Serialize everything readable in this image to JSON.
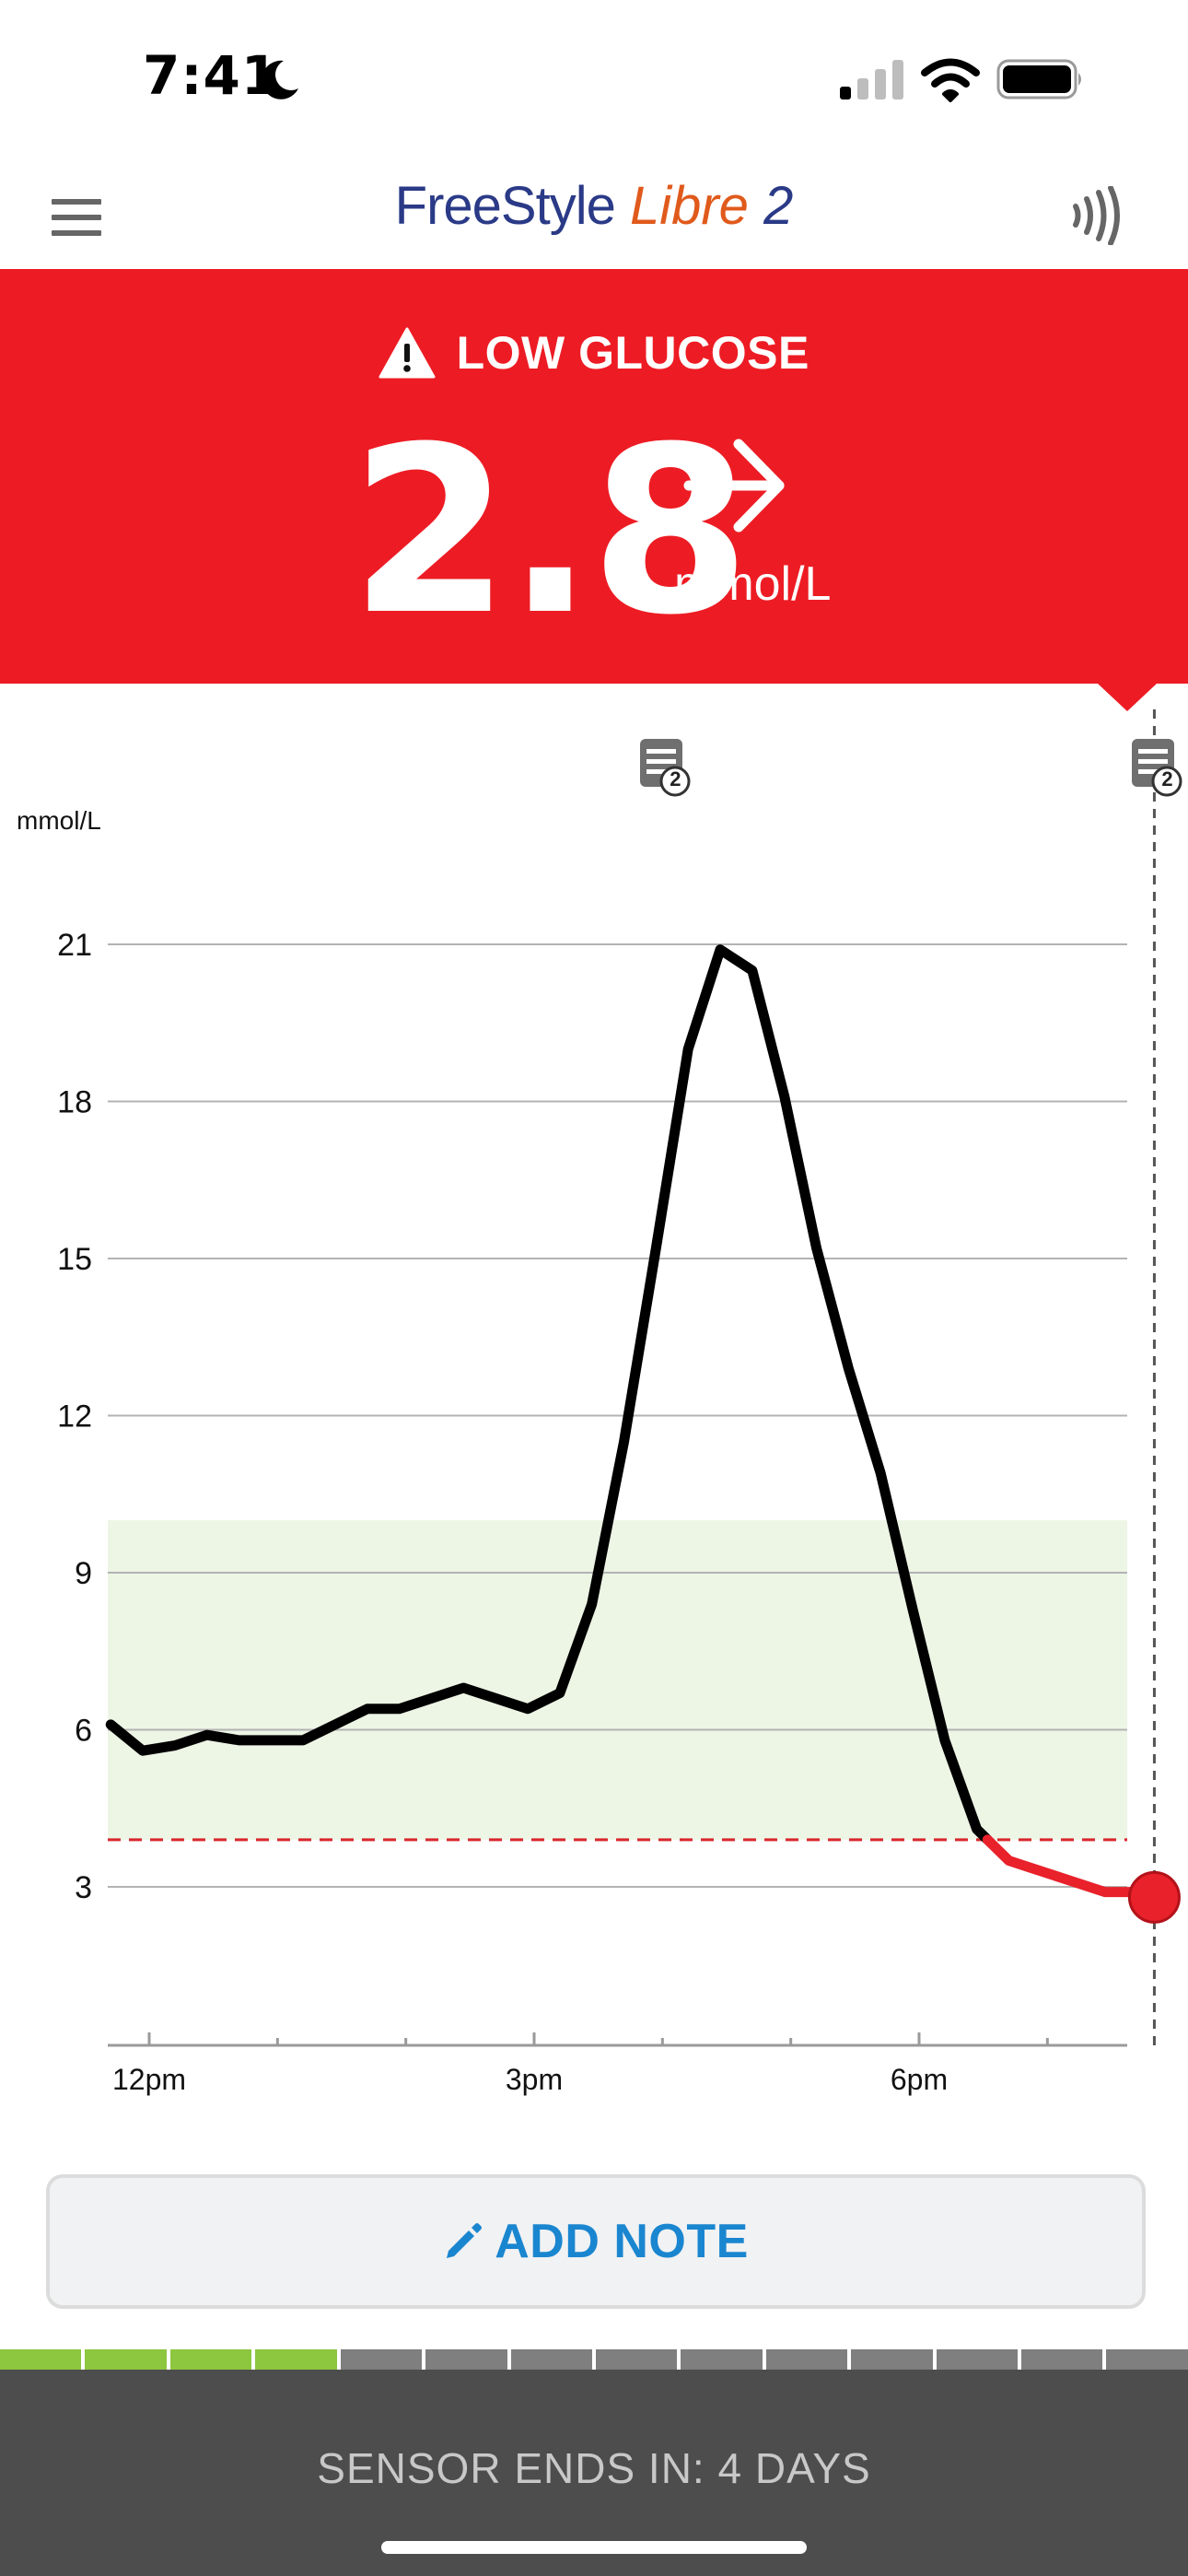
{
  "status_bar": {
    "time": "7:41"
  },
  "header": {
    "brand": {
      "part1": "FreeStyle",
      "part2": "Libre",
      "part3": "2"
    },
    "icons": {
      "menu": "hamburger-menu-icon",
      "scan": "nfc-scan-icon"
    }
  },
  "alert": {
    "title": "LOW GLUCOSE",
    "reading": "2.8",
    "unit": "mmol/L",
    "trend": "right-arrow",
    "color": "#ed1c24"
  },
  "note_markers": [
    {
      "count": "2",
      "at": "4:00pm"
    },
    {
      "count": "2",
      "at": "7:50pm"
    }
  ],
  "chart_data": {
    "type": "line",
    "ylabel": "mmol/L",
    "y_ticks": [
      "21",
      "18",
      "15",
      "12",
      "9",
      "6",
      "3"
    ],
    "ylim": [
      0,
      24
    ],
    "x_ticks": [
      "12pm",
      "3pm",
      "6pm"
    ],
    "target_range": [
      3.9,
      10.0
    ],
    "low_threshold": 3.9,
    "colors": {
      "line": "#000000",
      "low": "#e8212b",
      "target": "#edf5e5",
      "threshold": "#d9262c"
    },
    "series": [
      {
        "x": [
          "11:42am",
          "11:57am",
          "12:12pm",
          "12:27pm",
          "12:42pm",
          "12:57pm",
          "1:12pm",
          "1:27pm",
          "1:42pm",
          "1:57pm",
          "2:12pm",
          "2:27pm",
          "2:42pm",
          "2:57pm",
          "3:12pm",
          "3:27pm",
          "3:42pm",
          "3:57pm",
          "4:12pm",
          "4:27pm",
          "4:42pm",
          "4:57pm",
          "5:12pm",
          "5:27pm",
          "5:42pm",
          "5:57pm",
          "6:12pm",
          "6:27pm",
          "6:42pm",
          "6:57pm",
          "7:12pm",
          "7:27pm",
          "7:42pm",
          "7:50pm"
        ],
        "values": [
          6.1,
          5.6,
          5.7,
          5.9,
          5.8,
          5.8,
          5.8,
          6.1,
          6.4,
          6.4,
          6.6,
          6.8,
          6.6,
          6.4,
          6.7,
          8.4,
          11.5,
          15.2,
          19,
          20.9,
          20.5,
          18.1,
          15.2,
          12.9,
          10.9,
          8.3,
          5.8,
          4.1,
          3.5,
          3.3,
          3.1,
          2.9,
          2.9,
          2.8
        ]
      }
    ],
    "current": {
      "x": "7:50pm",
      "value": 2.8
    }
  },
  "add_note": {
    "label": "ADD NOTE"
  },
  "sensor": {
    "label": "SENSOR ENDS IN: 4 DAYS",
    "segments_total": 14,
    "segments_elapsed": 4,
    "colors": {
      "elapsed": "#8dc63f",
      "remaining": "#7f7f7f"
    }
  }
}
